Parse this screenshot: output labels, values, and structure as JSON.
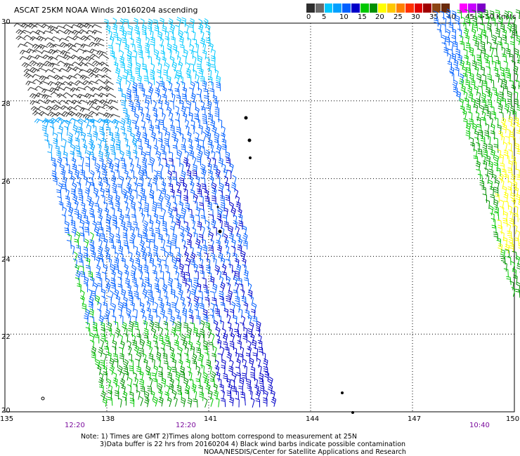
{
  "title": "ASCAT 25KM NOAA Winds 20160204 ascending",
  "legend": {
    "colors": [
      "#2e2e2e",
      "#6b6b6b",
      "#00c8ff",
      "#00a0ff",
      "#0060ff",
      "#0000c8",
      "#00c800",
      "#009000",
      "#ffff00",
      "#ffc800",
      "#ff8000",
      "#ff3000",
      "#e00000",
      "#a00000",
      "#8b4513",
      "#6a2a0a",
      "#ffffff",
      "#ff00ff",
      "#c800ff",
      "#7d00c8"
    ],
    "labels": [
      "0",
      "5",
      "10",
      "15",
      "20",
      "25",
      "30",
      "35",
      "40",
      "45",
      ">50 Knots"
    ]
  },
  "axes": {
    "lat_ticks": [
      "30",
      "28",
      "26",
      "24",
      "22",
      "20"
    ],
    "lon_ticks": [
      "135",
      "138",
      "141",
      "144",
      "147",
      "150"
    ]
  },
  "pass_times": [
    "12:20",
    "12:20",
    "10:40"
  ],
  "notes": [
    "Note: 1) Times are GMT 2)Times along bottom correspond to measurement at 25N",
    "3)Data buffer is 22 hrs from 20160204 4) Black wind barbs indicate possible contamination",
    "NOAA/NESDIS/Center for Satellite Applications and Research"
  ]
}
